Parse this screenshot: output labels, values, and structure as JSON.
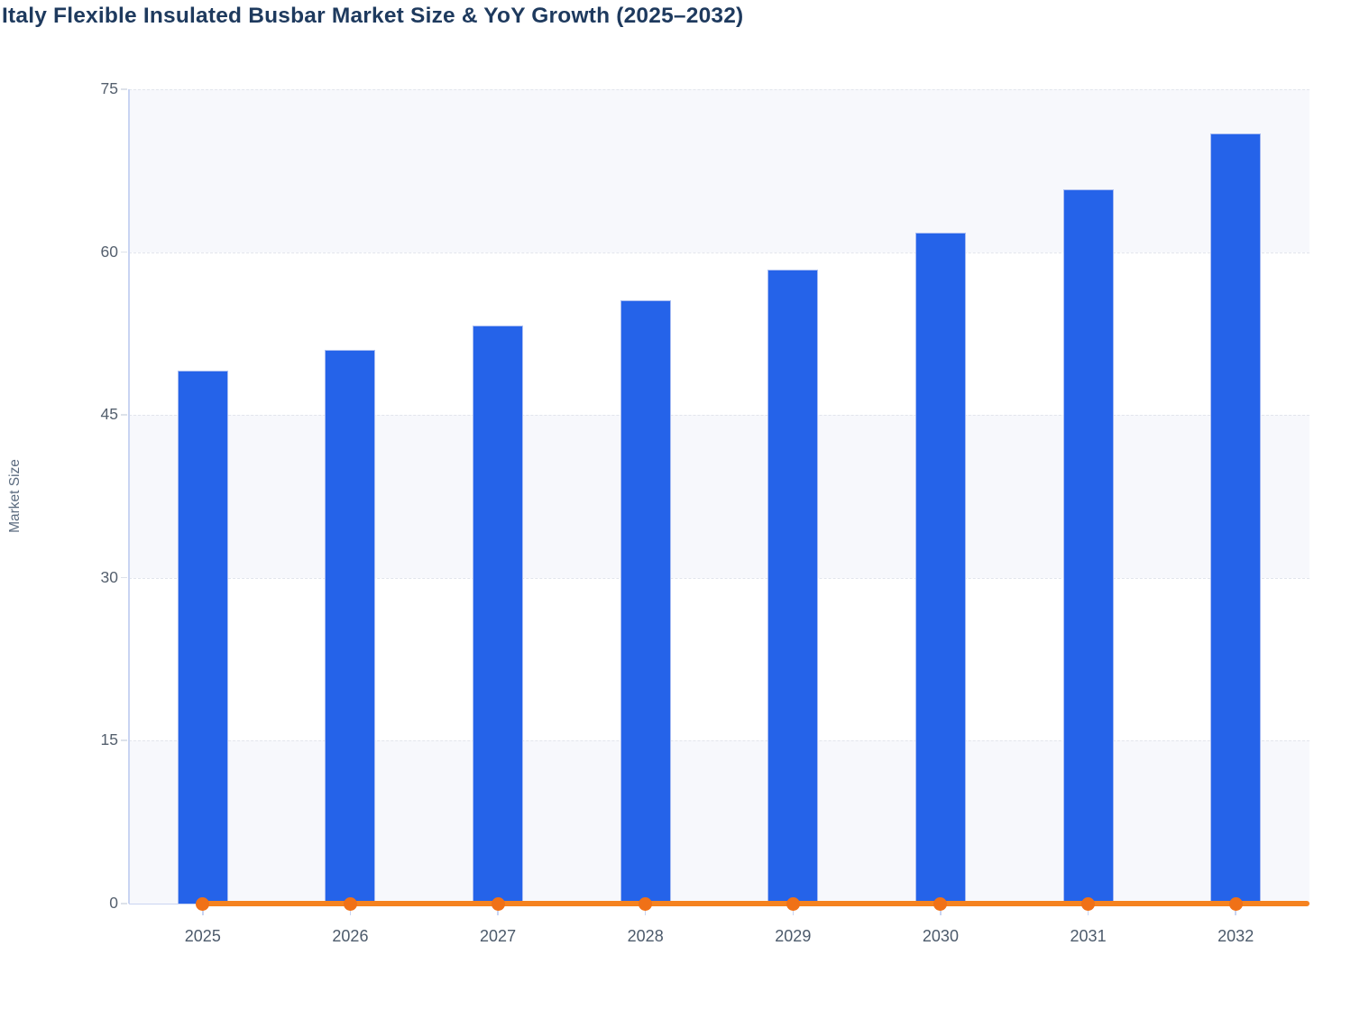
{
  "chart_data": {
    "type": "bar",
    "title": "Italy Flexible Insulated Busbar Market Size & YoY Growth (2025–2032)",
    "xlabel": "",
    "ylabel": "Market Size",
    "categories": [
      "2025",
      "2026",
      "2027",
      "2028",
      "2029",
      "2030",
      "2031",
      "2032"
    ],
    "series": [
      {
        "name": "Market Size",
        "type": "bar",
        "color": "#2563e9",
        "values": [
          49.1,
          51.0,
          53.2,
          55.6,
          58.4,
          61.8,
          65.8,
          70.9
        ]
      },
      {
        "name": "YoY Growth",
        "type": "line",
        "color": "#f5821f",
        "values": [
          0,
          0,
          0,
          0,
          0,
          0,
          0,
          0
        ]
      }
    ],
    "ylim": [
      0,
      75
    ],
    "yticks": [
      0,
      15,
      30,
      45,
      60,
      75
    ],
    "grid": "dashed horizontal",
    "legend": "none",
    "plot_bands": "alternating horizontal bands between ticks, light band at top"
  },
  "colors": {
    "bar_fill": "#2563e9",
    "bar_border": "#a9bdf2",
    "line_orange": "#f5821f",
    "dot_orange": "#f07117",
    "band_light": "#f7f8fc",
    "band_white": "#ffffff",
    "gridline": "#e2e5ec",
    "axis_line": "#c9d4f2",
    "title_text": "#1e3a5e",
    "tick_text": "#4c5a6b",
    "y_tick_text": "#55606e",
    "axis_title_text": "#5b6b7f",
    "background": "#ffffff"
  }
}
